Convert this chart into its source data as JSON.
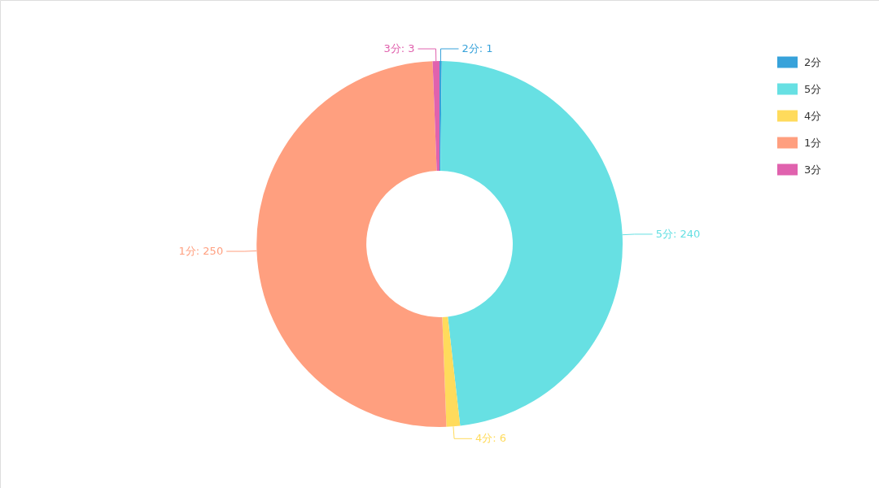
{
  "chart_data": {
    "type": "donut",
    "categories": [
      "2分",
      "5分",
      "4分",
      "1分",
      "3分"
    ],
    "values": [
      1,
      240,
      6,
      250,
      3
    ],
    "colors": [
      "#37a2da",
      "#67e0e3",
      "#ffdb5c",
      "#ff9f7f",
      "#e062ae"
    ],
    "value_labels": [
      "2分: 1",
      "5分: 240",
      "4分: 6",
      "1分: 250",
      "3分: 3"
    ],
    "legend": "top right"
  }
}
